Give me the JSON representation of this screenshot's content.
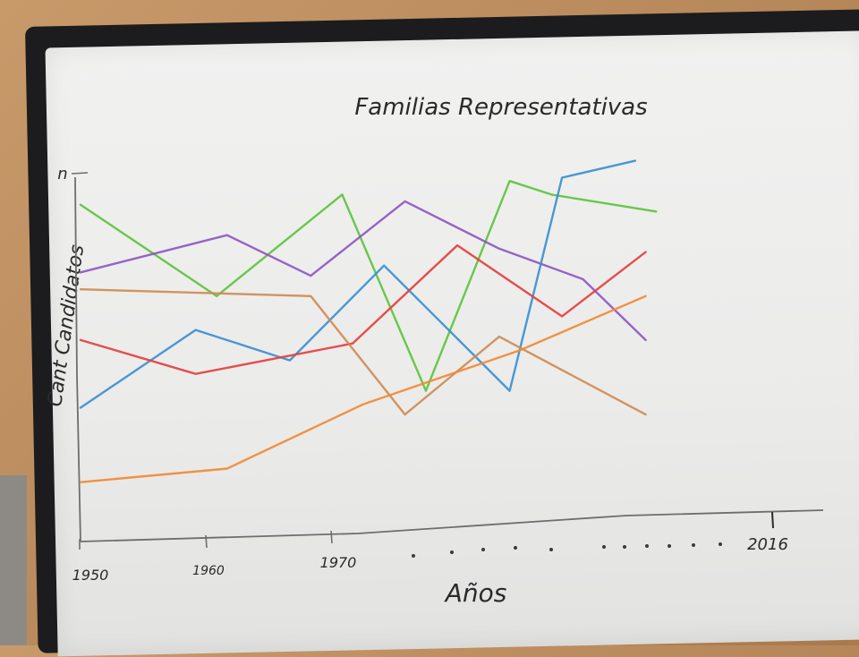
{
  "chart_data": {
    "type": "line",
    "title": "Familias Representativas",
    "xlabel": "Años",
    "ylabel": "Cant Candidatos",
    "xticks": [
      "1950",
      "1960",
      "1970",
      "2016"
    ],
    "yticks": [
      "n"
    ],
    "xlim": [
      1950,
      2016
    ],
    "ylim": [
      0,
      10
    ],
    "series": [
      {
        "color": "#5cc43b",
        "x": [
          1950,
          1963,
          1975,
          1983,
          1991,
          1995,
          2005
        ],
        "y": [
          8.5,
          5.8,
          8.8,
          3.0,
          9.2,
          8.8,
          8.3
        ]
      },
      {
        "color": "#8f57c4",
        "x": [
          1950,
          1964,
          1972,
          1981,
          1990,
          1998,
          2004
        ],
        "y": [
          6.5,
          7.6,
          6.4,
          8.6,
          7.2,
          6.3,
          4.5
        ]
      },
      {
        "color": "#3b8fd0",
        "x": [
          1950,
          1961,
          1970,
          1979,
          1991,
          1996,
          2003
        ],
        "y": [
          2.5,
          4.8,
          3.9,
          6.7,
          3.0,
          9.3,
          9.8
        ]
      },
      {
        "color": "#e3403e",
        "x": [
          1950,
          1961,
          1976,
          1986,
          1996,
          2004
        ],
        "y": [
          4.5,
          3.5,
          4.4,
          7.3,
          5.2,
          7.1
        ]
      },
      {
        "color": "#cf8b52",
        "x": [
          1950,
          1972,
          1981,
          1990,
          2004
        ],
        "y": [
          6.0,
          5.8,
          2.3,
          4.6,
          2.3
        ]
      },
      {
        "color": "#f08a34",
        "x": [
          1950,
          1964,
          1977,
          1992,
          2004
        ],
        "y": [
          0.3,
          0.7,
          2.6,
          4.2,
          5.8
        ]
      }
    ]
  }
}
